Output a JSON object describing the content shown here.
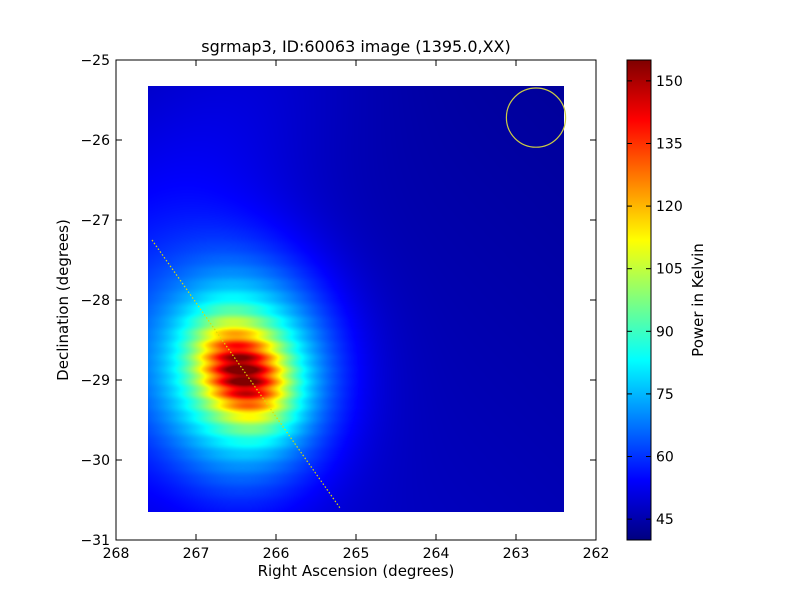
{
  "chart_data": {
    "type": "heatmap",
    "title": "sgrmap3, ID:60063 image (1395.0,XX)",
    "xlabel": "Right Ascension (degrees)",
    "ylabel": "Declination (degrees)",
    "xlim": [
      268,
      262
    ],
    "ylim": [
      -31,
      -25
    ],
    "x_ticks": [
      268,
      267,
      266,
      265,
      264,
      263,
      262
    ],
    "y_ticks": [
      -31,
      -30,
      -29,
      -28,
      -27,
      -26,
      -25
    ],
    "x_tick_labels": [
      "268",
      "267",
      "266",
      "265",
      "264",
      "263",
      "262"
    ],
    "y_tick_labels": [
      "−31",
      "−30",
      "−29",
      "−28",
      "−27",
      "−26",
      "−25"
    ],
    "data_extent": {
      "ra": [
        267.6,
        262.4
      ],
      "dec": [
        -30.65,
        -25.32
      ]
    },
    "peak": {
      "ra": 266.42,
      "dec": -28.9,
      "value": 155
    },
    "background_value": 43,
    "colormap": "jet",
    "colorbar": {
      "label": "Power in Kelvin",
      "range": [
        40,
        155
      ],
      "ticks": [
        45,
        60,
        75,
        90,
        105,
        120,
        135,
        150
      ],
      "tick_labels": [
        "45",
        "60",
        "75",
        "90",
        "105",
        "120",
        "135",
        "150"
      ]
    },
    "annotations": [
      {
        "type": "circle",
        "ra": 262.75,
        "dec": -25.72,
        "radius_deg": 0.37,
        "color": "#cccc44"
      },
      {
        "type": "dotted-line",
        "from": {
          "ra": 267.55,
          "dec": -27.25
        },
        "to": {
          "ra": 265.2,
          "dec": -30.6
        },
        "color": "#dddd00"
      }
    ],
    "grid": false
  }
}
